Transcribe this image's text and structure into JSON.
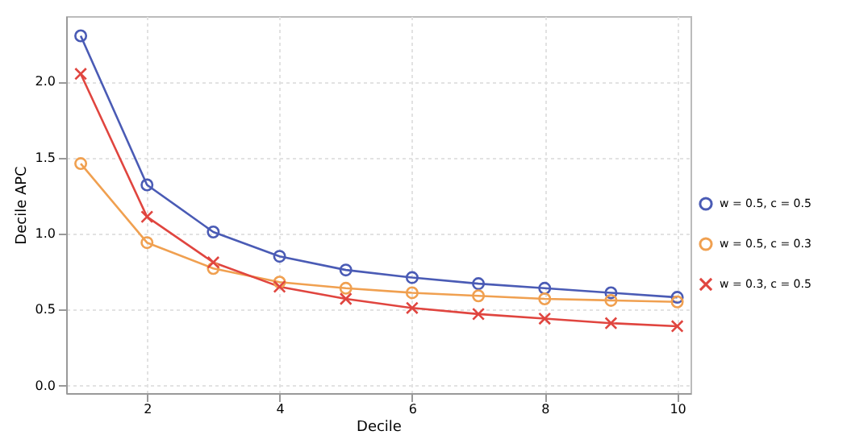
{
  "chart_data": {
    "type": "line",
    "xlabel": "Decile",
    "ylabel": "Decile APC",
    "x": [
      1,
      2,
      3,
      4,
      5,
      6,
      7,
      8,
      9,
      10
    ],
    "series": [
      {
        "name": "w = 0.5, c = 0.5",
        "color": "#4a5bb5",
        "marker": "circle",
        "values": [
          2.3,
          1.32,
          1.01,
          0.85,
          0.76,
          0.71,
          0.67,
          0.64,
          0.61,
          0.58
        ]
      },
      {
        "name": "w = 0.5, c = 0.3",
        "color": "#f0a050",
        "marker": "circle",
        "values": [
          1.46,
          0.94,
          0.77,
          0.68,
          0.64,
          0.61,
          0.59,
          0.57,
          0.56,
          0.55
        ]
      },
      {
        "name": "w = 0.3, c = 0.5",
        "color": "#e0453f",
        "marker": "cross",
        "values": [
          2.05,
          1.11,
          0.81,
          0.65,
          0.57,
          0.51,
          0.47,
          0.44,
          0.41,
          0.39
        ]
      }
    ],
    "xlim": [
      0.78,
      10.2
    ],
    "ylim": [
      -0.05,
      2.43
    ],
    "xticks": [
      2,
      4,
      6,
      8,
      10
    ],
    "yticks": [
      {
        "value": 0,
        "label": "0.0"
      },
      {
        "value": 0.5,
        "label": "0.5"
      },
      {
        "value": 1,
        "label": "1.0"
      },
      {
        "value": 1.5,
        "label": "1.5"
      },
      {
        "value": 2,
        "label": "2.0"
      }
    ],
    "grid": true,
    "legend": "right",
    "line_style": "solid"
  }
}
